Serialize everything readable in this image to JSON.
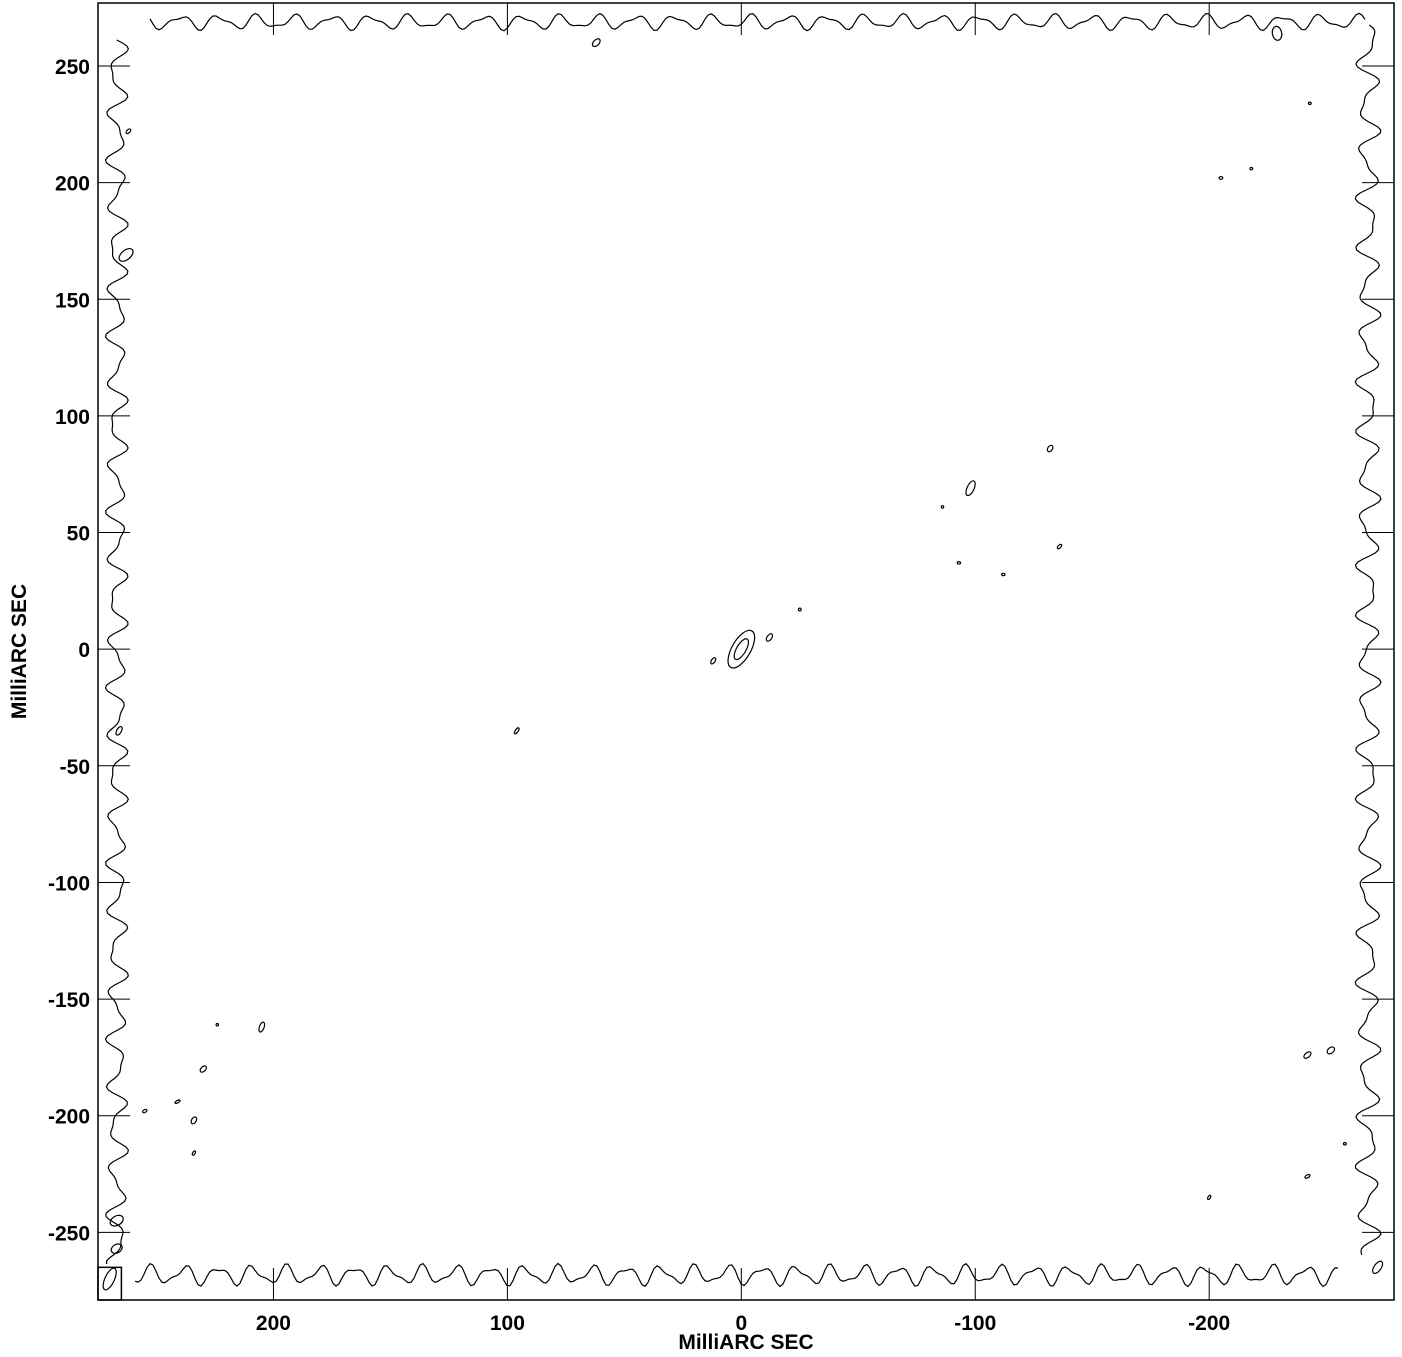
{
  "chart_data": {
    "type": "contour",
    "xlabel": "MilliARC SEC",
    "ylabel": "MilliARC SEC",
    "xlim": [
      275,
      -279
    ],
    "ylim": [
      -279,
      277
    ],
    "x_ticks": [
      200,
      100,
      0,
      -100,
      -200
    ],
    "x_tick_labels": [
      "200",
      "100",
      "0",
      "-100",
      "-200"
    ],
    "y_ticks": [
      250,
      200,
      150,
      100,
      50,
      0,
      -50,
      -100,
      -150,
      -200,
      -250
    ],
    "y_tick_labels": [
      "250",
      "200",
      "150",
      "100",
      "50",
      "0",
      "-50",
      "-100",
      "-150",
      "-200",
      "-250"
    ],
    "grid": false,
    "features": [
      {
        "kind": "core-outer",
        "x": 0,
        "y": 0,
        "a": 9,
        "b": 4,
        "angle": -60
      },
      {
        "kind": "core-inner",
        "x": 0,
        "y": 0,
        "a": 5,
        "b": 2,
        "angle": -60
      },
      {
        "kind": "blob",
        "x": -12,
        "y": 5,
        "a": 1.8,
        "b": 1,
        "angle": -55
      },
      {
        "kind": "blob",
        "x": 12,
        "y": -5,
        "a": 1.5,
        "b": 0.8,
        "angle": -55
      },
      {
        "kind": "blob",
        "x": 96,
        "y": -35,
        "a": 1.5,
        "b": 0.6,
        "angle": -55
      },
      {
        "kind": "blob",
        "x": -25,
        "y": 17,
        "a": 0.6,
        "b": 0.6,
        "angle": 0
      },
      {
        "kind": "blob",
        "x": -98,
        "y": 69,
        "a": 3.4,
        "b": 1.5,
        "angle": -65
      },
      {
        "kind": "blob",
        "x": -132,
        "y": 86,
        "a": 1.5,
        "b": 1,
        "angle": -55
      },
      {
        "kind": "blob",
        "x": -86,
        "y": 61,
        "a": 0.5,
        "b": 0.5,
        "angle": 0
      },
      {
        "kind": "blob",
        "x": -93,
        "y": 37,
        "a": 0.7,
        "b": 0.5,
        "angle": 0
      },
      {
        "kind": "blob",
        "x": -112,
        "y": 32,
        "a": 0.7,
        "b": 0.5,
        "angle": 0
      },
      {
        "kind": "blob",
        "x": -136,
        "y": 44,
        "a": 1.2,
        "b": 0.6,
        "angle": -45
      },
      {
        "kind": "blob",
        "x": -205,
        "y": 202,
        "a": 0.8,
        "b": 0.6,
        "angle": 0
      },
      {
        "kind": "blob",
        "x": -218,
        "y": 206,
        "a": 0.6,
        "b": 0.5,
        "angle": 0
      },
      {
        "kind": "blob",
        "x": -243,
        "y": 234,
        "a": 0.6,
        "b": 0.5,
        "angle": 0
      },
      {
        "kind": "blob",
        "x": 62,
        "y": 260,
        "a": 2,
        "b": 1.2,
        "angle": -45
      },
      {
        "kind": "blob",
        "x": -229,
        "y": 264,
        "a": 3,
        "b": 2,
        "angle": 80
      },
      {
        "kind": "blob",
        "x": 262,
        "y": 222,
        "a": 1.2,
        "b": 0.7,
        "angle": -45
      },
      {
        "kind": "blob",
        "x": 263,
        "y": 169,
        "a": 3.5,
        "b": 2,
        "angle": -40
      },
      {
        "kind": "blob",
        "x": 266,
        "y": -35,
        "a": 2,
        "b": 1,
        "angle": -60
      },
      {
        "kind": "blob",
        "x": 205,
        "y": -162,
        "a": 2.2,
        "b": 1,
        "angle": -70
      },
      {
        "kind": "blob",
        "x": 224,
        "y": -161,
        "a": 0.5,
        "b": 0.5,
        "angle": 0
      },
      {
        "kind": "blob",
        "x": 230,
        "y": -180,
        "a": 1.6,
        "b": 1,
        "angle": -45
      },
      {
        "kind": "blob",
        "x": 241,
        "y": -194,
        "a": 1.2,
        "b": 0.5,
        "angle": -30
      },
      {
        "kind": "blob",
        "x": 255,
        "y": -198,
        "a": 1,
        "b": 0.6,
        "angle": -30
      },
      {
        "kind": "blob",
        "x": 234,
        "y": -202,
        "a": 1.6,
        "b": 1,
        "angle": -60
      },
      {
        "kind": "blob",
        "x": 234,
        "y": -216,
        "a": 1,
        "b": 0.5,
        "angle": -60
      },
      {
        "kind": "blob",
        "x": -242,
        "y": -174,
        "a": 1.8,
        "b": 1,
        "angle": -40
      },
      {
        "kind": "blob",
        "x": -252,
        "y": -172,
        "a": 1.8,
        "b": 1.2,
        "angle": -40
      },
      {
        "kind": "blob",
        "x": -258,
        "y": -212,
        "a": 0.6,
        "b": 0.5,
        "angle": 0
      },
      {
        "kind": "blob",
        "x": -242,
        "y": -226,
        "a": 1.2,
        "b": 0.6,
        "angle": -30
      },
      {
        "kind": "blob",
        "x": -200,
        "y": -235,
        "a": 1,
        "b": 0.5,
        "angle": -60
      },
      {
        "kind": "blob",
        "x": 267,
        "y": -245,
        "a": 3,
        "b": 2,
        "angle": -30
      },
      {
        "kind": "blob",
        "x": 267,
        "y": -257,
        "a": 2.5,
        "b": 1.8,
        "angle": -30
      },
      {
        "kind": "blob",
        "x": -272,
        "y": -265,
        "a": 3,
        "b": 1.5,
        "angle": -55
      }
    ],
    "beam": {
      "x_range": [
        275,
        265
      ],
      "y_range": [
        -279,
        -265
      ],
      "x": 270,
      "y": -270,
      "a": 5,
      "b": 2,
      "angle": -65
    }
  }
}
